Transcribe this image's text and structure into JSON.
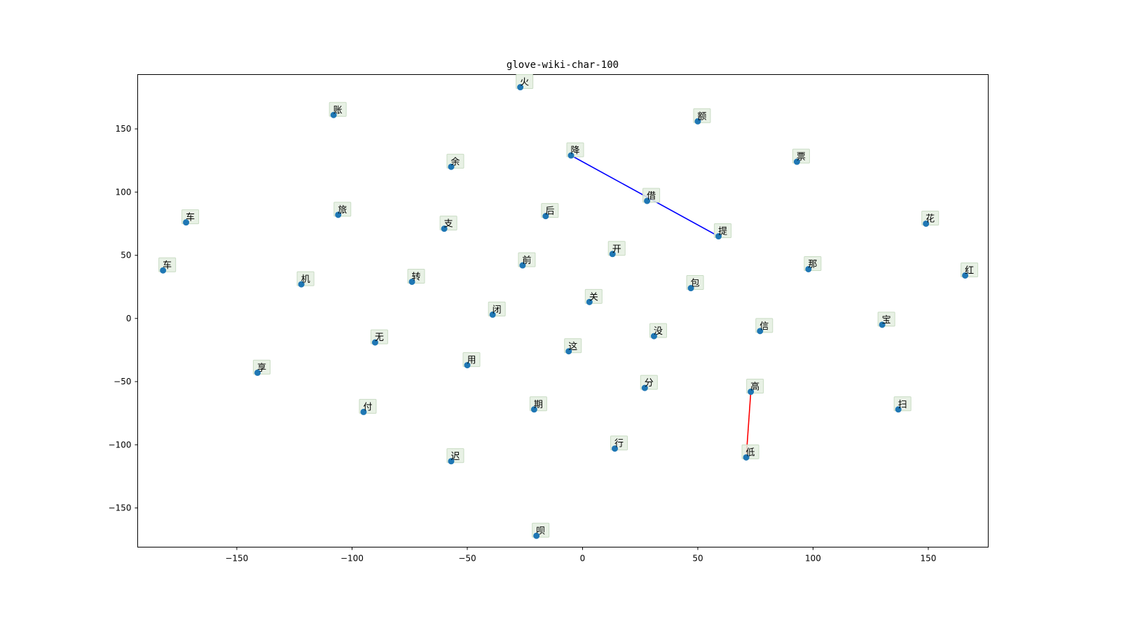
{
  "chart_data": {
    "type": "scatter",
    "title": "glove-wiki-char-100",
    "xlabel": "",
    "ylabel": "",
    "xlim": [
      -193,
      176
    ],
    "ylim": [
      -181,
      193
    ],
    "xticks": [
      -150,
      -100,
      -50,
      0,
      50,
      100,
      150
    ],
    "yticks": [
      150,
      100,
      50,
      0,
      -50,
      -100,
      -150
    ],
    "grid": false,
    "colors": {
      "point": "#1f77b4",
      "label_box": "#e4efe0",
      "line_blue": "#0000ff",
      "line_red": "#ff0000"
    },
    "points": [
      {
        "label": "火",
        "x": -27,
        "y": 183
      },
      {
        "label": "账",
        "x": -108,
        "y": 161
      },
      {
        "label": "额",
        "x": 50,
        "y": 156
      },
      {
        "label": "降",
        "x": -5,
        "y": 129
      },
      {
        "label": "票",
        "x": 93,
        "y": 124
      },
      {
        "label": "余",
        "x": -57,
        "y": 120
      },
      {
        "label": "借",
        "x": 28,
        "y": 93
      },
      {
        "label": "旅",
        "x": -106,
        "y": 82
      },
      {
        "label": "后",
        "x": -16,
        "y": 81
      },
      {
        "label": "车",
        "x": -172,
        "y": 76
      },
      {
        "label": "花",
        "x": 149,
        "y": 75
      },
      {
        "label": "支",
        "x": -60,
        "y": 71
      },
      {
        "label": "提",
        "x": 59,
        "y": 65
      },
      {
        "label": "开",
        "x": 13,
        "y": 51
      },
      {
        "label": "前",
        "x": -26,
        "y": 42
      },
      {
        "label": "那",
        "x": 98,
        "y": 39
      },
      {
        "label": "车",
        "x": -182,
        "y": 38
      },
      {
        "label": "红",
        "x": 166,
        "y": 34
      },
      {
        "label": "转",
        "x": -74,
        "y": 29
      },
      {
        "label": "机",
        "x": -122,
        "y": 27
      },
      {
        "label": "包",
        "x": 47,
        "y": 24
      },
      {
        "label": "关",
        "x": 3,
        "y": 13
      },
      {
        "label": "闭",
        "x": -39,
        "y": 3
      },
      {
        "label": "宝",
        "x": 130,
        "y": -5
      },
      {
        "label": "信",
        "x": 77,
        "y": -10
      },
      {
        "label": "没",
        "x": 31,
        "y": -14
      },
      {
        "label": "无",
        "x": -90,
        "y": -19
      },
      {
        "label": "这",
        "x": -6,
        "y": -26
      },
      {
        "label": "用",
        "x": -50,
        "y": -37
      },
      {
        "label": "享",
        "x": -141,
        "y": -43
      },
      {
        "label": "分",
        "x": 27,
        "y": -55
      },
      {
        "label": "高",
        "x": 73,
        "y": -58
      },
      {
        "label": "扫",
        "x": 137,
        "y": -72
      },
      {
        "label": "期",
        "x": -21,
        "y": -72
      },
      {
        "label": "付",
        "x": -95,
        "y": -74
      },
      {
        "label": "行",
        "x": 14,
        "y": -103
      },
      {
        "label": "低",
        "x": 71,
        "y": -110
      },
      {
        "label": "迟",
        "x": -57,
        "y": -113
      },
      {
        "label": "呗",
        "x": -20,
        "y": -172
      }
    ],
    "lines": [
      {
        "from": "降",
        "to": "提",
        "color": "#0000ff"
      },
      {
        "from": "高",
        "to": "低",
        "color": "#ff0000"
      }
    ]
  }
}
